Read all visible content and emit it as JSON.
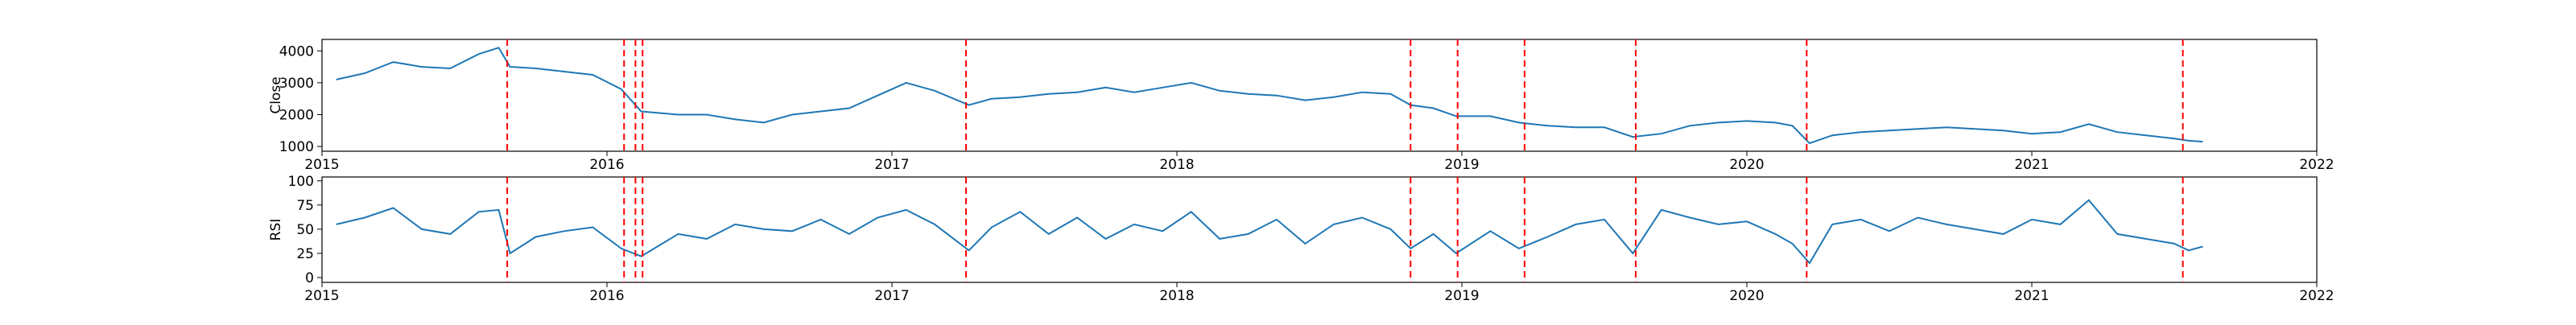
{
  "chart_data": [
    {
      "type": "line",
      "ylabel": "Close",
      "color": "#1f77b4",
      "vline_color": "#ff0000",
      "xlim": [
        2015,
        2022
      ],
      "xticks": [
        2015,
        2016,
        2017,
        2018,
        2019,
        2020,
        2021,
        2022
      ],
      "ylim": [
        850,
        4360
      ],
      "yticks": [
        1000,
        2000,
        3000,
        4000
      ],
      "vlines": [
        2015.65,
        2016.06,
        2016.1,
        2016.125,
        2017.26,
        2018.82,
        2018.985,
        2019.22,
        2019.61,
        2020.21,
        2021.53
      ],
      "x": [
        2015.05,
        2015.15,
        2015.25,
        2015.35,
        2015.45,
        2015.55,
        2015.62,
        2015.66,
        2015.75,
        2015.85,
        2015.95,
        2016.05,
        2016.12,
        2016.25,
        2016.35,
        2016.45,
        2016.55,
        2016.65,
        2016.75,
        2016.85,
        2016.95,
        2017.05,
        2017.15,
        2017.27,
        2017.35,
        2017.45,
        2017.55,
        2017.65,
        2017.75,
        2017.85,
        2017.95,
        2018.05,
        2018.15,
        2018.25,
        2018.35,
        2018.45,
        2018.55,
        2018.65,
        2018.75,
        2018.82,
        2018.9,
        2018.98,
        2019.1,
        2019.2,
        2019.3,
        2019.4,
        2019.5,
        2019.6,
        2019.7,
        2019.8,
        2019.9,
        2020.0,
        2020.1,
        2020.16,
        2020.22,
        2020.3,
        2020.4,
        2020.5,
        2020.6,
        2020.7,
        2020.8,
        2020.9,
        2021.0,
        2021.1,
        2021.2,
        2021.3,
        2021.4,
        2021.5,
        2021.55,
        2021.6
      ],
      "values": [
        3100,
        3300,
        3650,
        3500,
        3450,
        3900,
        4100,
        3500,
        3450,
        3350,
        3250,
        2800,
        2100,
        2000,
        2000,
        1850,
        1750,
        2000,
        2100,
        2200,
        2600,
        3000,
        2750,
        2300,
        2500,
        2550,
        2650,
        2700,
        2850,
        2700,
        2850,
        3000,
        2750,
        2650,
        2600,
        2450,
        2550,
        2700,
        2650,
        2300,
        2200,
        1950,
        1950,
        1750,
        1650,
        1600,
        1600,
        1300,
        1400,
        1650,
        1750,
        1800,
        1750,
        1650,
        1100,
        1350,
        1450,
        1500,
        1550,
        1600,
        1550,
        1500,
        1400,
        1450,
        1700,
        1450,
        1350,
        1250,
        1180,
        1150
      ]
    },
    {
      "type": "line",
      "ylabel": "RSI",
      "color": "#1f77b4",
      "vline_color": "#ff0000",
      "xlim": [
        2015,
        2022
      ],
      "xticks": [
        2015,
        2016,
        2017,
        2018,
        2019,
        2020,
        2021,
        2022
      ],
      "ylim": [
        -5,
        104
      ],
      "yticks": [
        0,
        25,
        50,
        75,
        100
      ],
      "vlines": [
        2015.65,
        2016.06,
        2016.1,
        2016.125,
        2017.26,
        2018.82,
        2018.985,
        2019.22,
        2019.61,
        2020.21,
        2021.53
      ],
      "x": [
        2015.05,
        2015.15,
        2015.25,
        2015.35,
        2015.45,
        2015.55,
        2015.62,
        2015.66,
        2015.75,
        2015.85,
        2015.95,
        2016.05,
        2016.12,
        2016.25,
        2016.35,
        2016.45,
        2016.55,
        2016.65,
        2016.75,
        2016.85,
        2016.95,
        2017.05,
        2017.15,
        2017.27,
        2017.35,
        2017.45,
        2017.55,
        2017.65,
        2017.75,
        2017.85,
        2017.95,
        2018.05,
        2018.15,
        2018.25,
        2018.35,
        2018.45,
        2018.55,
        2018.65,
        2018.75,
        2018.82,
        2018.9,
        2018.98,
        2019.1,
        2019.2,
        2019.3,
        2019.4,
        2019.5,
        2019.6,
        2019.7,
        2019.8,
        2019.9,
        2020.0,
        2020.1,
        2020.16,
        2020.22,
        2020.3,
        2020.4,
        2020.5,
        2020.6,
        2020.7,
        2020.8,
        2020.9,
        2021.0,
        2021.1,
        2021.2,
        2021.3,
        2021.4,
        2021.5,
        2021.55,
        2021.6
      ],
      "values": [
        55,
        62,
        72,
        50,
        45,
        68,
        70,
        25,
        42,
        48,
        52,
        30,
        22,
        45,
        40,
        55,
        50,
        48,
        60,
        45,
        62,
        70,
        55,
        28,
        52,
        68,
        45,
        62,
        40,
        55,
        48,
        68,
        40,
        45,
        60,
        35,
        55,
        62,
        50,
        30,
        45,
        25,
        48,
        30,
        42,
        55,
        60,
        25,
        70,
        62,
        55,
        58,
        45,
        35,
        15,
        55,
        60,
        48,
        62,
        55,
        50,
        45,
        60,
        55,
        80,
        45,
        40,
        35,
        28,
        32
      ]
    }
  ]
}
